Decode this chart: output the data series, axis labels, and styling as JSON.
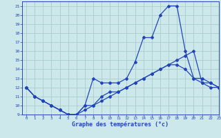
{
  "bg_color": "#cce8ea",
  "grid_color": "#aacccc",
  "line_color": "#2244bb",
  "xlabel": "Graphe des températures (°c)",
  "xlim": [
    -0.5,
    23
  ],
  "ylim": [
    9,
    21.5
  ],
  "yticks": [
    9,
    10,
    11,
    12,
    13,
    14,
    15,
    16,
    17,
    18,
    19,
    20,
    21
  ],
  "xticks": [
    0,
    1,
    2,
    3,
    4,
    5,
    6,
    7,
    8,
    9,
    10,
    11,
    12,
    13,
    14,
    15,
    16,
    17,
    18,
    19,
    20,
    21,
    22,
    23
  ],
  "line1_x": [
    0,
    1,
    2,
    3,
    4,
    5,
    6,
    7,
    8,
    9,
    10,
    11,
    12,
    13,
    14,
    15,
    16,
    17,
    18,
    19,
    20,
    21,
    22,
    23
  ],
  "line1_y": [
    12,
    11,
    10.5,
    10,
    9.5,
    9,
    9,
    10,
    13,
    12.5,
    12.5,
    12.5,
    13,
    14.8,
    17.5,
    17.5,
    20,
    21,
    21,
    16,
    13,
    12.5,
    12.5,
    12
  ],
  "line2_x": [
    0,
    1,
    2,
    3,
    4,
    5,
    6,
    7,
    8,
    9,
    10,
    11,
    12,
    13,
    14,
    15,
    16,
    17,
    18,
    19,
    20,
    21,
    22,
    23
  ],
  "line2_y": [
    12,
    11,
    10.5,
    10,
    9.5,
    9,
    9,
    10,
    10,
    11,
    11.5,
    11.5,
    12,
    12.5,
    13,
    13.5,
    14,
    14.5,
    14.5,
    14,
    13,
    13,
    12.5,
    12
  ],
  "line3_x": [
    0,
    1,
    2,
    3,
    4,
    5,
    6,
    7,
    8,
    9,
    10,
    11,
    12,
    13,
    14,
    15,
    16,
    17,
    18,
    19,
    20,
    21,
    22,
    23
  ],
  "line3_y": [
    12,
    11,
    10.5,
    10,
    9.5,
    9,
    9,
    9.5,
    10,
    10.5,
    11,
    11.5,
    12,
    12.5,
    13,
    13.5,
    14,
    14.5,
    15,
    15.5,
    16,
    12.5,
    12,
    12
  ]
}
